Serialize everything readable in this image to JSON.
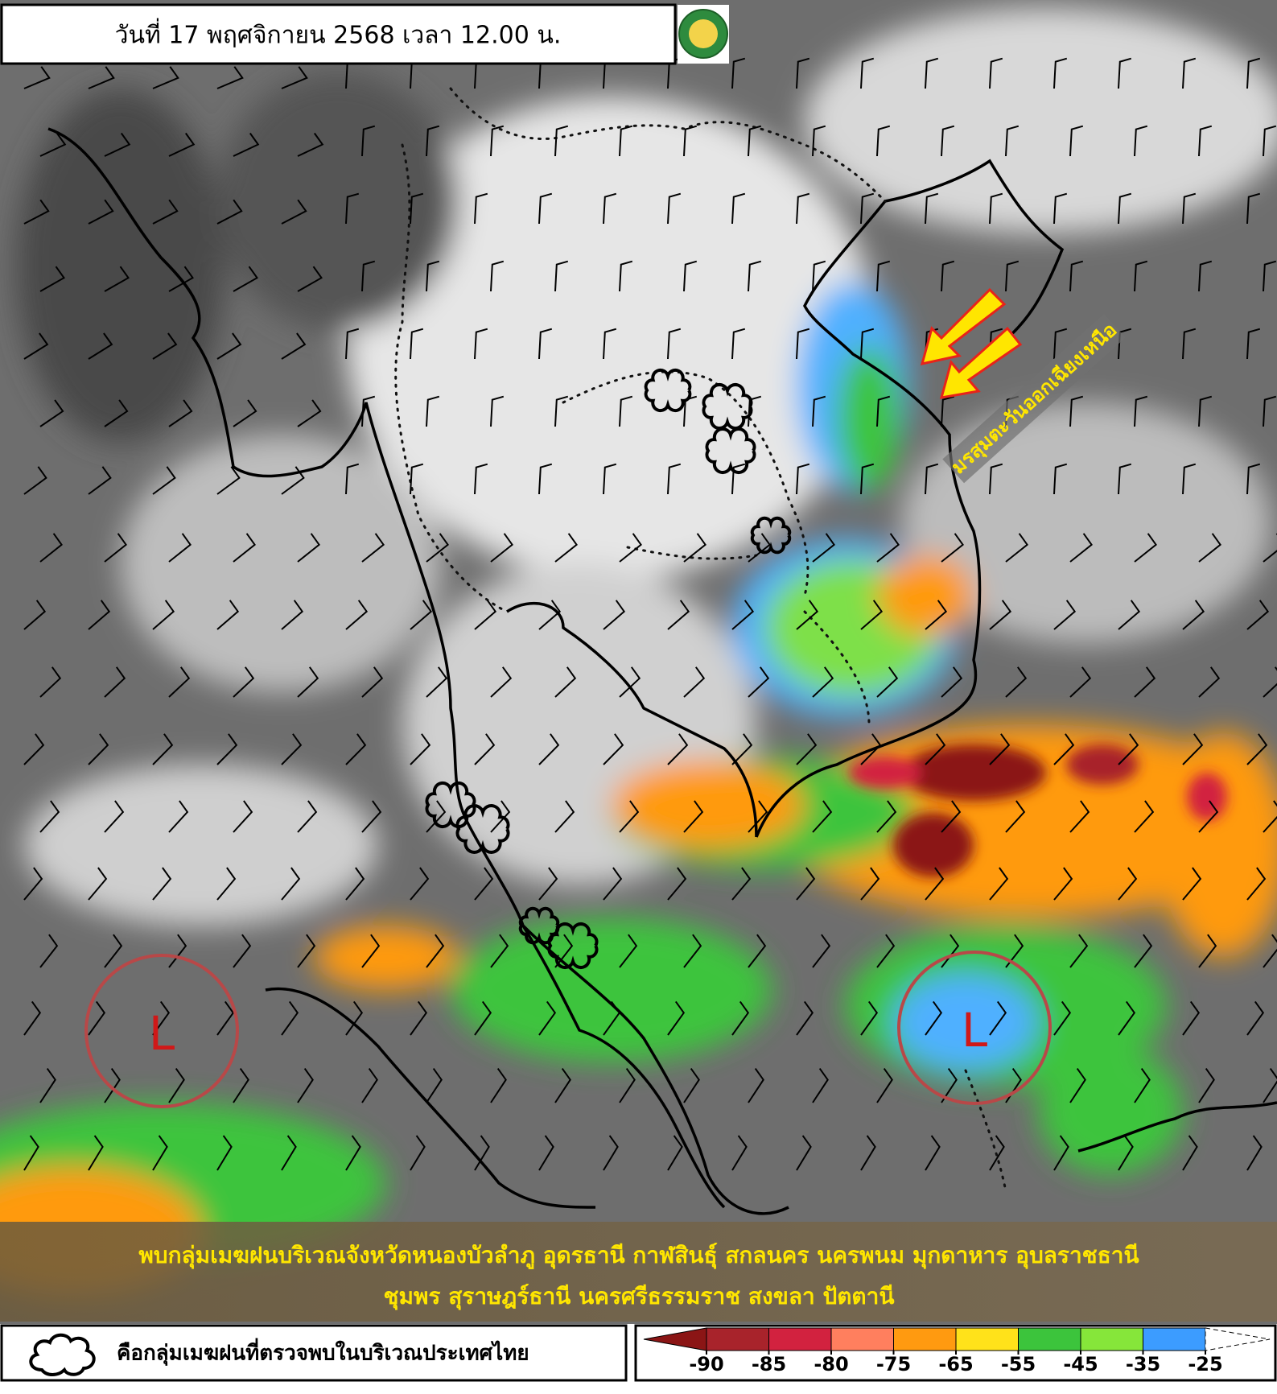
{
  "header": {
    "title": "วันที่ 17 พฤศจิกายน 2568 เวลา 12.00 น."
  },
  "map": {
    "low_markers": [
      "L",
      "L"
    ],
    "monsoon_label": "มรสุมตะวันออกเฉียงเหนือ"
  },
  "caption": {
    "lines": [
      "พบกลุ่มเมฆฝนบริเวณจังหวัดหนองบัวลำภู อุดรธานี กาฬสินธุ์ สกลนคร นครพนม มุกดาหาร อุบลราชธานี",
      "ชุมพร สุราษฎร์ธานี นครศรีธรรมราช สงขลา ปัตตานี"
    ]
  },
  "legend": {
    "cloud_text": "คือกลุ่มเมฆฝนที่ตรวจพบในบริเวณประเทศไทย"
  },
  "colorbar": {
    "ticks": [
      -90,
      -85,
      -80,
      -75,
      -65,
      -55,
      -45,
      -35,
      -25
    ],
    "colors": [
      "#a8232b",
      "#d2223f",
      "#ff7f5e",
      "#ff9a10",
      "#ffe21a",
      "#3cc43c",
      "#86e63a",
      "#3c9cff"
    ],
    "under_color": "#8b1515"
  }
}
